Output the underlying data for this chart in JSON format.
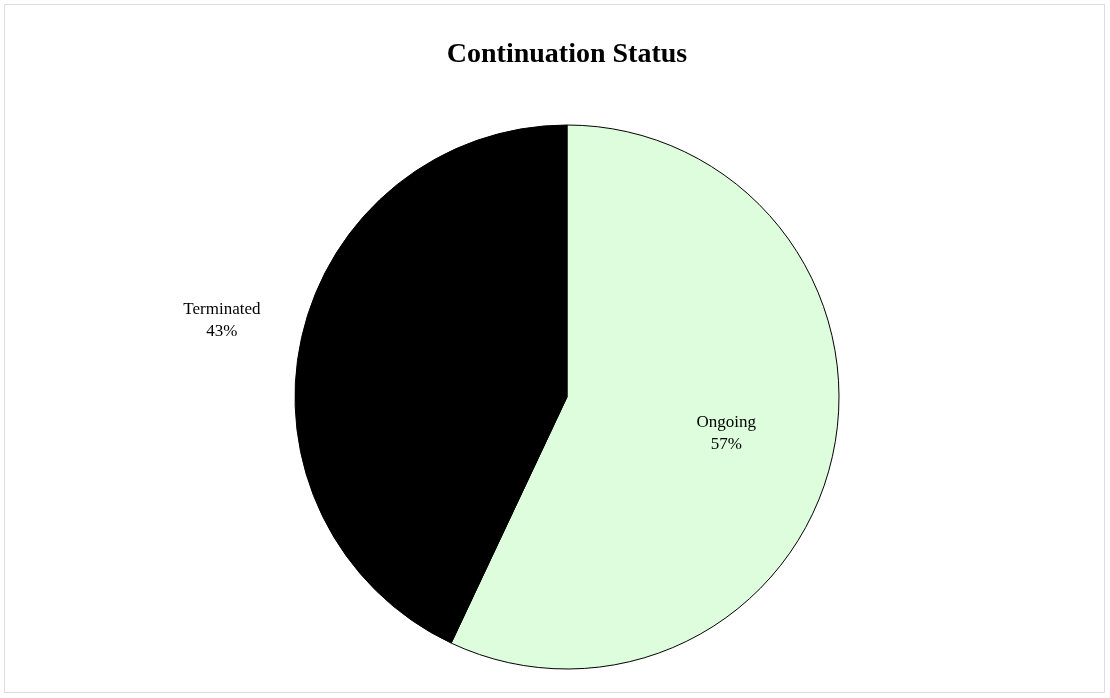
{
  "chart_data": {
    "type": "pie",
    "title": "Continuation Status",
    "categories": [
      "Ongoing",
      "Terminated"
    ],
    "values": [
      57,
      43
    ],
    "colors": [
      "#ddfddd",
      "#000000"
    ],
    "value_labels": [
      "57%",
      "43%"
    ],
    "legend": false
  }
}
